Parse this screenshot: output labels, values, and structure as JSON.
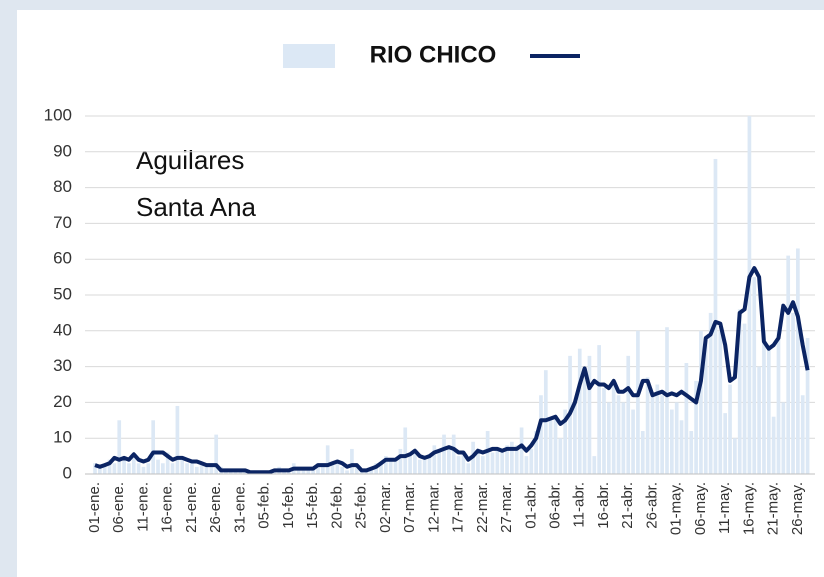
{
  "chart_data": {
    "type": "bar_line",
    "title": "RIO CHICO",
    "annotation": [
      "Aguilares",
      "Santa Ana"
    ],
    "categories": [
      "01-ene.",
      null,
      null,
      null,
      null,
      "06-ene.",
      null,
      null,
      null,
      null,
      "11-ene.",
      null,
      null,
      null,
      null,
      "16-ene.",
      null,
      null,
      null,
      null,
      "21-ene.",
      null,
      null,
      null,
      null,
      "26-ene.",
      null,
      null,
      null,
      null,
      "31-ene.",
      null,
      null,
      null,
      null,
      "05-feb.",
      null,
      null,
      null,
      null,
      "10-feb.",
      null,
      null,
      null,
      null,
      "15-feb.",
      null,
      null,
      null,
      null,
      "20-feb.",
      null,
      null,
      null,
      null,
      "25-feb.",
      null,
      null,
      null,
      null,
      "02-mar.",
      null,
      null,
      null,
      null,
      "07-mar.",
      null,
      null,
      null,
      null,
      "12-mar.",
      null,
      null,
      null,
      null,
      "17-mar.",
      null,
      null,
      null,
      null,
      "22-mar.",
      null,
      null,
      null,
      null,
      "27-mar.",
      null,
      null,
      null,
      null,
      "01-abr.",
      null,
      null,
      null,
      null,
      "06-abr.",
      null,
      null,
      null,
      null,
      "11-abr.",
      null,
      null,
      null,
      null,
      "16-abr.",
      null,
      null,
      null,
      null,
      "21-abr.",
      null,
      null,
      null,
      null,
      "26-abr.",
      null,
      null,
      null,
      null,
      "01-may.",
      null,
      null,
      null,
      null,
      "06-may.",
      null,
      null,
      null,
      null,
      "11-may.",
      null,
      null,
      null,
      null,
      "16-may.",
      null,
      null,
      null,
      null,
      "21-may.",
      null,
      null,
      null,
      null,
      "26-may.",
      null,
      null
    ],
    "series": [
      {
        "type": "bar",
        "color": "#dce8f5",
        "values": [
          3,
          2,
          3,
          4,
          3,
          15,
          4,
          3,
          5,
          3,
          2,
          3,
          15,
          4,
          3,
          6,
          3,
          19,
          4,
          3,
          4,
          2,
          3,
          3,
          2,
          11,
          2,
          1,
          1,
          1,
          1,
          1,
          0,
          1,
          0,
          1,
          0,
          1,
          2,
          1,
          1,
          3,
          1,
          2,
          1,
          2,
          3,
          2,
          8,
          3,
          4,
          2,
          1,
          7,
          2,
          1,
          1,
          2,
          3,
          3,
          5,
          4,
          4,
          7,
          13,
          5,
          6,
          4,
          4,
          5,
          8,
          6,
          11,
          7,
          11,
          5,
          6,
          3,
          9,
          6,
          5,
          12,
          6,
          7,
          6,
          8,
          9,
          8,
          13,
          5,
          7,
          12,
          22,
          29,
          15,
          16,
          10,
          18,
          33,
          20,
          35,
          30,
          33,
          5,
          36,
          24,
          20,
          25,
          22,
          20,
          33,
          18,
          40,
          12,
          27,
          22,
          25,
          22,
          41,
          18,
          20,
          15,
          31,
          12,
          26,
          40,
          38,
          45,
          88,
          40,
          17,
          25,
          10,
          46,
          42,
          100,
          55,
          30,
          40,
          35,
          16,
          40,
          20,
          61,
          45,
          63,
          22,
          38
        ]
      },
      {
        "type": "line",
        "color": "#0b2463",
        "values": [
          2.5,
          2,
          2.5,
          3,
          4.5,
          4,
          4.5,
          4,
          5.5,
          4,
          3.5,
          4,
          6,
          6,
          6,
          5,
          4,
          4.5,
          4.5,
          4,
          3.5,
          3.5,
          3,
          2.5,
          2.5,
          2.5,
          1,
          1,
          1,
          1,
          1,
          1,
          0.5,
          0.5,
          0.5,
          0.5,
          0.5,
          1,
          1,
          1,
          1,
          1.5,
          1.5,
          1.5,
          1.5,
          1.5,
          2.5,
          2.5,
          2.5,
          3,
          3.5,
          3,
          2,
          2.5,
          2.5,
          1,
          1,
          1.5,
          2,
          3,
          4,
          4,
          4,
          5,
          5,
          5.5,
          6.5,
          5,
          4.5,
          5,
          6,
          6.5,
          7,
          7.5,
          7,
          6,
          6,
          4,
          5,
          6.5,
          6,
          6.5,
          7,
          7,
          6.5,
          7,
          7,
          7,
          8,
          6.5,
          8,
          10,
          15,
          15,
          15.5,
          16,
          14,
          15,
          17,
          20,
          25,
          29.5,
          24,
          26,
          25,
          25,
          24,
          26,
          23,
          23,
          24,
          22,
          22,
          26,
          26,
          22,
          22.5,
          23,
          22,
          22.5,
          22,
          23,
          22,
          21,
          20,
          26,
          38,
          39,
          42.5,
          42,
          36,
          26,
          27,
          45,
          46,
          55,
          57.5,
          55,
          37,
          35,
          36,
          38,
          47,
          45,
          48,
          44,
          36,
          29
        ]
      }
    ],
    "ylim": [
      0,
      100
    ],
    "yticks": [
      0,
      10,
      20,
      30,
      40,
      50,
      60,
      70,
      80,
      90,
      100
    ],
    "grid": true
  }
}
